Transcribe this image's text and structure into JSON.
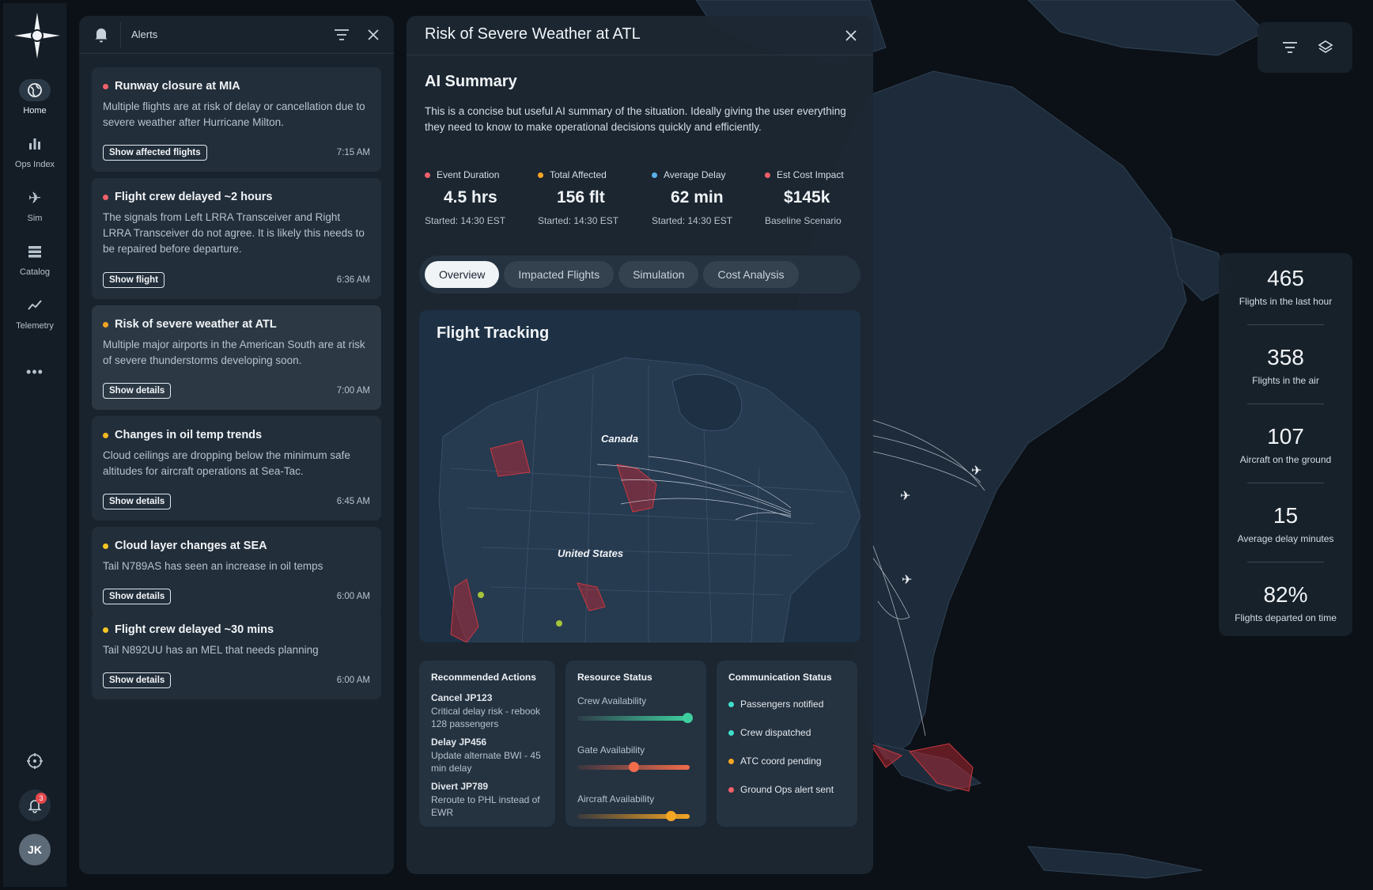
{
  "nav": {
    "items": [
      {
        "label": "Home",
        "icon": "globe-icon",
        "active": true
      },
      {
        "label": "Ops Index",
        "icon": "bar-chart-icon",
        "active": false
      },
      {
        "label": "Sim",
        "icon": "airplane-icon",
        "active": false
      },
      {
        "label": "Catalog",
        "icon": "stack-icon",
        "active": false
      },
      {
        "label": "Telemetry",
        "icon": "trend-icon",
        "active": false
      }
    ],
    "more_icon": "ellipsis-icon",
    "notification_count": "3",
    "avatar_initials": "JK"
  },
  "alerts": {
    "title": "Alerts",
    "items": [
      {
        "title": "Runway closure at MIA",
        "body": "Multiple flights are at risk of delay or cancellation due to severe weather after Hurricane Milton.",
        "action": "Show affected flights",
        "time": "7:15 AM",
        "severity_color": "#f0606a"
      },
      {
        "title": "Flight crew delayed ~2 hours",
        "body": "The signals from Left LRRA Transceiver and Right LRRA Transceiver do not agree. It is likely this needs to be repaired before departure.",
        "action": "Show flight",
        "time": "6:36 AM",
        "severity_color": "#f0606a"
      },
      {
        "title": "Risk of severe weather at ATL",
        "body": "Multiple major airports in the American South are at risk of severe thunderstorms developing soon.",
        "action": "Show details",
        "time": "7:00 AM",
        "severity_color": "#f5a623"
      },
      {
        "title": "Changes in oil temp trends",
        "body": "Cloud ceilings are dropping below the minimum safe altitudes for aircraft operations at Sea-Tac.",
        "action": "Show details",
        "time": "6:45 AM",
        "severity_color": "#f5b623"
      },
      {
        "title": "Cloud layer changes at SEA",
        "body": "Tail N789AS has seen an increase in oil temps",
        "action": "Show details",
        "time": "6:00 AM",
        "severity_color": "#f5c623"
      },
      {
        "title": "Flight crew delayed ~30 mins",
        "body": "Tail N892UU has an MEL that needs planning",
        "action": "Show details",
        "time": "6:00 AM",
        "severity_color": "#f5c623"
      }
    ]
  },
  "detail": {
    "title": "Risk of Severe Weather at ATL",
    "ai_title": "AI Summary",
    "ai_text": "This is a concise but useful AI summary of the situation. Ideally giving the user everything they need to know to make operational decisions quickly and efficiently.",
    "kpis": [
      {
        "label": "Event Duration",
        "value": "4.5 hrs",
        "sub": "Started: 14:30 EST",
        "color": "#f0606a"
      },
      {
        "label": "Total Affected",
        "value": "156 flt",
        "sub": "Started: 14:30 EST",
        "color": "#f5a623"
      },
      {
        "label": "Average Delay",
        "value": "62 min",
        "sub": "Started: 14:30 EST",
        "color": "#5ab0e8"
      },
      {
        "label": "Est Cost Impact",
        "value": "$145k",
        "sub": "Baseline Scenario",
        "color": "#f0606a"
      }
    ],
    "tabs": [
      "Overview",
      "Impacted Flights",
      "Simulation",
      "Cost Analysis"
    ],
    "active_tab": "Overview",
    "flight_tracking": {
      "title": "Flight Tracking",
      "labels": [
        "Canada",
        "United States"
      ]
    },
    "recommended": {
      "title": "Recommended Actions",
      "items": [
        {
          "title": "Cancel JP123",
          "desc": "Critical delay risk - rebook 128 passengers"
        },
        {
          "title": "Delay JP456",
          "desc": "Update alternate BWI - 45 min delay"
        },
        {
          "title": "Divert JP789",
          "desc": "Reroute to PHL instead of EWR"
        }
      ]
    },
    "resources": {
      "title": "Resource Status",
      "items": [
        {
          "label": "Crew Availability",
          "level": 0.98,
          "knob": "#3ecf9e"
        },
        {
          "label": "Gate Availability",
          "level": 0.5,
          "knob": "#f26b4b"
        },
        {
          "label": "Aircraft Availability",
          "level": 0.83,
          "knob": "#f5a623"
        }
      ]
    },
    "communication": {
      "title": "Communication Status",
      "items": [
        {
          "label": "Passengers notified",
          "color": "#3ee0c8"
        },
        {
          "label": "Crew dispatched",
          "color": "#3ee0c8"
        },
        {
          "label": "ATC coord pending",
          "color": "#f5a623"
        },
        {
          "label": "Ground Ops alert sent",
          "color": "#f0606a"
        }
      ]
    }
  },
  "stats": [
    {
      "value": "465",
      "label": "Flights in the last hour"
    },
    {
      "value": "358",
      "label": "Flights in the air"
    },
    {
      "value": "107",
      "label": "Aircraft on the ground"
    },
    {
      "value": "15",
      "label": "Average delay minutes"
    },
    {
      "value": "82%",
      "label": "Flights departed on time"
    }
  ]
}
